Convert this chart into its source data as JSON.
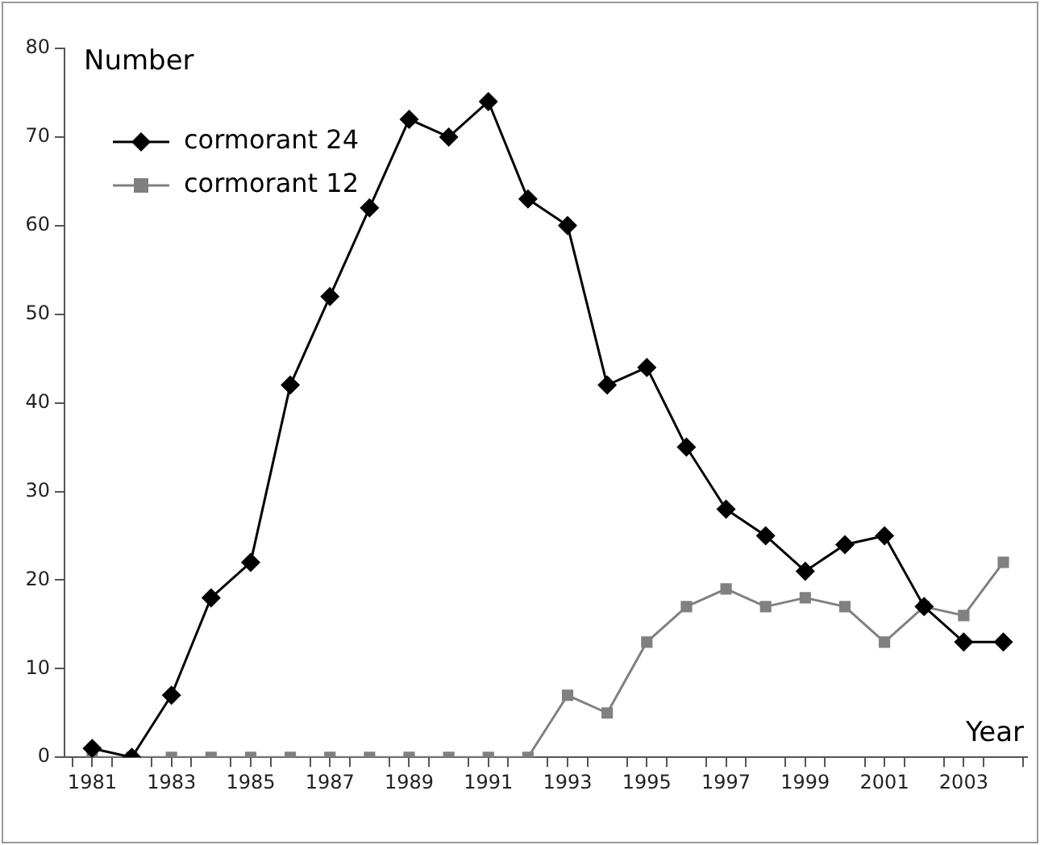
{
  "chart_data": {
    "type": "line",
    "xlabel": "Year",
    "ylabel": "Number",
    "x": [
      1981,
      1982,
      1983,
      1984,
      1985,
      1986,
      1987,
      1988,
      1989,
      1990,
      1991,
      1992,
      1993,
      1994,
      1995,
      1996,
      1997,
      1998,
      1999,
      2000,
      2001,
      2002,
      2003,
      2004
    ],
    "series": [
      {
        "name": "cormorant 24",
        "color": "#000000",
        "marker": "diamond",
        "values": [
          1,
          0,
          7,
          18,
          22,
          42,
          52,
          62,
          72,
          70,
          74,
          63,
          60,
          42,
          44,
          35,
          28,
          25,
          21,
          24,
          25,
          17,
          13,
          13
        ]
      },
      {
        "name": "cormorant 12",
        "color": "#808080",
        "marker": "square",
        "values": [
          0,
          0,
          0,
          0,
          0,
          0,
          0,
          0,
          0,
          0,
          0,
          0,
          7,
          5,
          13,
          17,
          19,
          17,
          18,
          17,
          13,
          17,
          16,
          22
        ]
      }
    ],
    "xlim": [
      1980.3,
      2004.6
    ],
    "xticks": [
      {
        "value": 1980.5,
        "label": null
      },
      1981,
      {
        "value": 1981.5,
        "label": null
      },
      {
        "value": 1982.5,
        "label": null
      },
      1983,
      {
        "value": 1983.5,
        "label": null
      },
      {
        "value": 1984.5,
        "label": null
      },
      1985,
      {
        "value": 1985.5,
        "label": null
      },
      {
        "value": 1986.5,
        "label": null
      },
      1987,
      {
        "value": 1987.5,
        "label": null
      },
      {
        "value": 1988.5,
        "label": null
      },
      1989,
      {
        "value": 1989.5,
        "label": null
      },
      {
        "value": 1990.5,
        "label": null
      },
      1991,
      {
        "value": 1991.5,
        "label": null
      },
      {
        "value": 1992.5,
        "label": null
      },
      1993,
      {
        "value": 1993.5,
        "label": null
      },
      {
        "value": 1994.5,
        "label": null
      },
      1995,
      {
        "value": 1995.5,
        "label": null
      },
      {
        "value": 1996.5,
        "label": null
      },
      1997,
      {
        "value": 1997.5,
        "label": null
      },
      {
        "value": 1998.5,
        "label": null
      },
      1999,
      {
        "value": 1999.5,
        "label": null
      },
      {
        "value": 2000.5,
        "label": null
      },
      2001,
      {
        "value": 2001.5,
        "label": null
      },
      {
        "value": 2002.5,
        "label": null
      },
      2003,
      {
        "value": 2003.5,
        "label": null
      },
      {
        "value": 2004.5,
        "label": null
      }
    ],
    "ylim": [
      0,
      80
    ],
    "yticks": [
      0,
      10,
      20,
      30,
      40,
      50,
      60,
      70,
      80
    ],
    "grid": false,
    "legend": "top left"
  }
}
